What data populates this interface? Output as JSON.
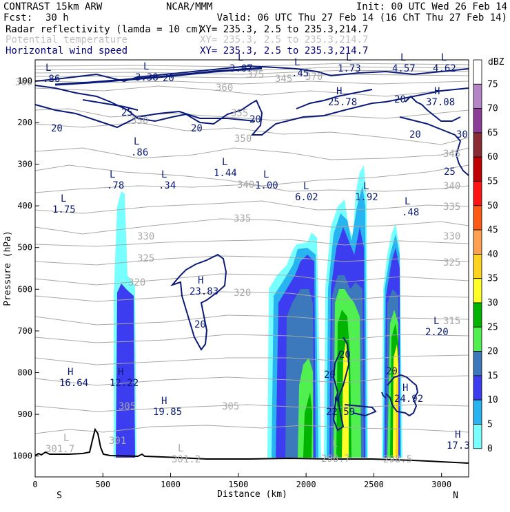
{
  "header": {
    "model": "CONTRAST 15km ARW",
    "center": "NCAR/MMM",
    "init": "Init: 00 UTC Wed 26 Feb 14",
    "fcst_label": "Fcst:",
    "fcst_value": "30 h",
    "valid": "Valid: 06 UTC Thu 27 Feb 14 (16 ChT Thu 27 Feb 14)"
  },
  "legend": [
    {
      "name": "Radar reflectivity (lamda = 10 cm)",
      "xy": "XY= 235.3,  2.5 to 235.3,214.7",
      "color": "#000000"
    },
    {
      "name": "Potential temperature",
      "xy": "XY= 235.3,  2.5 to 235.3,214.7",
      "color": "#a8a8a8"
    },
    {
      "name": "Horizontal wind speed",
      "xy": "XY= 235.3,  2.5 to 235.3,214.7",
      "color": "#00007a"
    }
  ],
  "colors": {
    "theta": "#a8a8a8",
    "wind": "#0a1a78",
    "terrain": "#000000"
  },
  "chart_data": {
    "type": "cross-section",
    "xlabel": "Distance (km)",
    "ylabel": "Pressure (hPa)",
    "xlim": [
      0,
      3200
    ],
    "ylim": [
      1050,
      50
    ],
    "x_ticks": [
      "0",
      "500",
      "1000",
      "1500",
      "2000",
      "2500",
      "3000"
    ],
    "y_ticks": [
      "100",
      "200",
      "300",
      "400",
      "500",
      "600",
      "700",
      "800",
      "900",
      "1000"
    ],
    "end_labels": {
      "left": "S",
      "right": "N"
    },
    "colorbar": {
      "unit": "dBZ",
      "levels": [
        "75",
        "70",
        "65",
        "60",
        "55",
        "50",
        "45",
        "40",
        "35",
        "30",
        "25",
        "20",
        "15",
        "10",
        "5",
        "0"
      ],
      "colors": [
        "#ffffff",
        "#b484c4",
        "#8a3c96",
        "#8b2a33",
        "#c00000",
        "#ff1414",
        "#ff5a14",
        "#ffa050",
        "#ffd21e",
        "#ffff28",
        "#00b400",
        "#50f050",
        "#3c78bc",
        "#3c3cf0",
        "#28b4f0",
        "#78ffff"
      ]
    },
    "reflectivity_columns": [
      {
        "x_range": [
          570,
          740
        ],
        "top_hPa": 360,
        "max_dBZ": 15
      },
      {
        "x_range": [
          1720,
          2100
        ],
        "top_hPa": 490,
        "max_dBZ": 30
      },
      {
        "x_range": [
          2150,
          2450
        ],
        "top_hPa": 320,
        "max_dBZ": 35
      },
      {
        "x_range": [
          2540,
          2700
        ],
        "top_hPa": 440,
        "max_dBZ": 40
      }
    ],
    "theta_contour_labels": [
      "360",
      "375",
      "345",
      "370",
      "360",
      "355",
      "350",
      "350",
      "345",
      "340",
      "340",
      "335",
      "335",
      "330",
      "330",
      "325",
      "325",
      "320",
      "320",
      "315",
      "305",
      "305",
      "301",
      "301.7",
      "301.2",
      "298.7",
      "298.5"
    ],
    "wind_contour_labels": [
      "20",
      "25",
      "20",
      "20",
      "20",
      "20",
      "30",
      "20",
      "25",
      "20",
      "20",
      "20",
      "20"
    ],
    "wind_extrema": [
      {
        "type": "L",
        "value": ".86",
        "x_km": 0,
        "p_hPa": 115
      },
      {
        "type": "L",
        "value": "3.38",
        "x_km": 780,
        "p_hPa": 95
      },
      {
        "type": "L",
        "value": "3.07",
        "x_km": 1380,
        "p_hPa": 75
      },
      {
        "type": "L",
        "value": ".45",
        "x_km": 1870,
        "p_hPa": 95
      },
      {
        "type": "L",
        "value": "1.73",
        "x_km": 2270,
        "p_hPa": 80
      },
      {
        "type": "L",
        "value": "4.57",
        "x_km": 2650,
        "p_hPa": 80
      },
      {
        "type": "L",
        "value": "4.62",
        "x_km": 2900,
        "p_hPa": 75
      },
      {
        "type": "H",
        "value": "25.78",
        "x_km": 2200,
        "p_hPa": 150
      },
      {
        "type": "H",
        "value": "37.08",
        "x_km": 2900,
        "p_hPa": 150
      },
      {
        "type": "L",
        "value": ".86",
        "x_km": 740,
        "p_hPa": 250
      },
      {
        "type": "L",
        "value": ".78",
        "x_km": 540,
        "p_hPa": 350
      },
      {
        "type": "L",
        "value": ".34",
        "x_km": 930,
        "p_hPa": 350
      },
      {
        "type": "L",
        "value": "1.44",
        "x_km": 1370,
        "p_hPa": 320
      },
      {
        "type": "L",
        "value": "1.00",
        "x_km": 1650,
        "p_hPa": 350
      },
      {
        "type": "L",
        "value": "6.02",
        "x_km": 2010,
        "p_hPa": 380
      },
      {
        "type": "L",
        "value": "1.92",
        "x_km": 2400,
        "p_hPa": 380
      },
      {
        "type": "L",
        "value": ".48",
        "x_km": 2700,
        "p_hPa": 420
      },
      {
        "type": "L",
        "value": "1.75",
        "x_km": 180,
        "p_hPa": 420
      },
      {
        "type": "H",
        "value": "23.83",
        "x_km": 1200,
        "p_hPa": 610
      },
      {
        "type": "L",
        "value": "2.20",
        "x_km": 2950,
        "p_hPa": 720
      },
      {
        "type": "H",
        "value": "16.64",
        "x_km": 200,
        "p_hPa": 835
      },
      {
        "type": "H",
        "value": "12.22",
        "x_km": 610,
        "p_hPa": 835
      },
      {
        "type": "H",
        "value": "19.85",
        "x_km": 870,
        "p_hPa": 915
      },
      {
        "type": "H",
        "value": "22.59",
        "x_km": 2240,
        "p_hPa": 915
      },
      {
        "type": "H",
        "value": "24.92",
        "x_km": 2750,
        "p_hPa": 885
      },
      {
        "type": "H",
        "value": "17.3",
        "x_km": 3100,
        "p_hPa": 980
      }
    ]
  }
}
